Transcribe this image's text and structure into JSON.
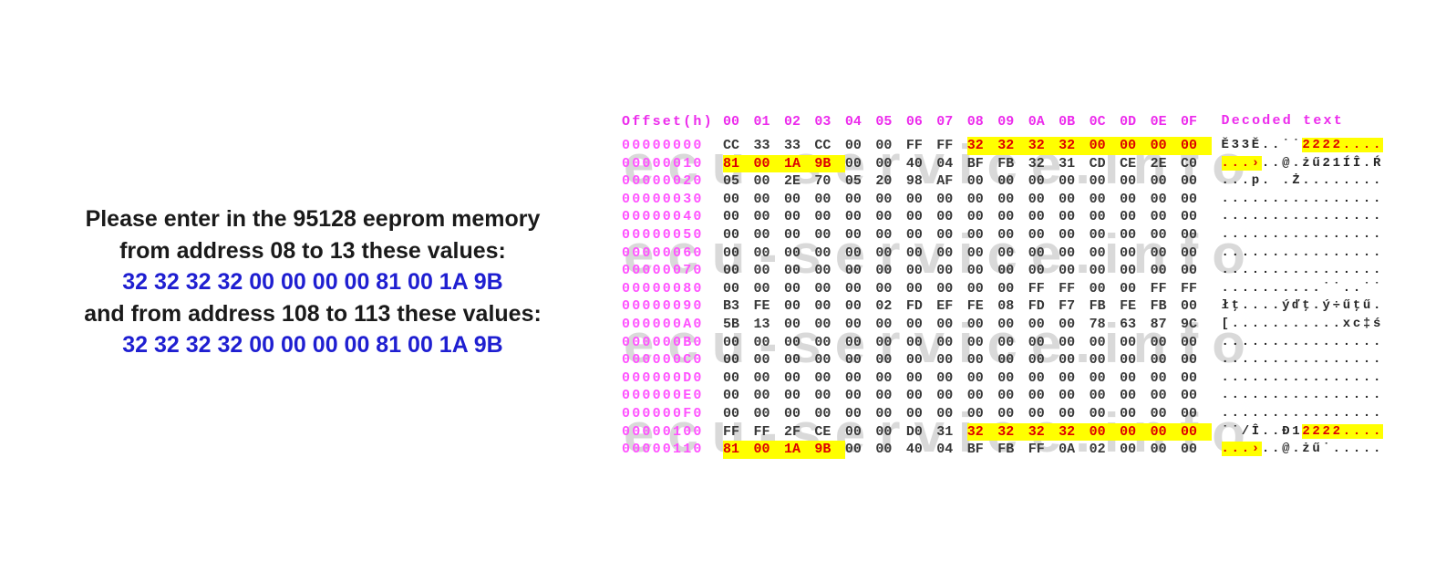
{
  "instructions": {
    "lines": [
      {
        "text": "Please enter in the 95128 eeprom memory",
        "style": "black"
      },
      {
        "text": "from address 08 to 13 these values:",
        "style": "black"
      },
      {
        "text": "32 32 32 32 00 00 00 00 81 00 1A 9B",
        "style": "blue"
      },
      {
        "text": "and from address 108 to 113 these values:",
        "style": "black"
      },
      {
        "text": "32 32 32 32 00 00 00 00 81 00 1A 9B",
        "style": "blue"
      }
    ],
    "text_color": "#1a1a1a",
    "value_color": "#1f1fd1"
  },
  "hex_editor": {
    "offset_header": "Offset(h)",
    "decoded_header": "Decoded text",
    "column_labels": [
      "00",
      "01",
      "02",
      "03",
      "04",
      "05",
      "06",
      "07",
      "08",
      "09",
      "0A",
      "0B",
      "0C",
      "0D",
      "0E",
      "0F"
    ],
    "watermark_text": "ecu-service.info",
    "colors": {
      "header_magenta": "#ec2bec",
      "address_pink": "#ff52ff",
      "hex_text": "#383838",
      "highlight_bg": "#ffff00",
      "highlight_text": "#dd0000",
      "watermark_gray": "#d9d9d9"
    },
    "rows": [
      {
        "address": "00000000",
        "bytes": [
          "CC",
          "33",
          "33",
          "CC",
          "00",
          "00",
          "FF",
          "FF",
          "32",
          "32",
          "32",
          "32",
          "00",
          "00",
          "00",
          "00"
        ],
        "hl": [
          8,
          16
        ],
        "decoded": [
          {
            "t": "Ě33Ě..˙˙",
            "h": false
          },
          {
            "t": "2222....",
            "h": true
          }
        ]
      },
      {
        "address": "00000010",
        "bytes": [
          "81",
          "00",
          "1A",
          "9B",
          "00",
          "00",
          "40",
          "04",
          "BF",
          "FB",
          "32",
          "31",
          "CD",
          "CE",
          "2E",
          "C0"
        ],
        "hl": [
          0,
          4
        ],
        "decoded": [
          {
            "t": "...›",
            "h": true
          },
          {
            "t": "..@.żű21ÍÎ.Ŕ",
            "h": false
          }
        ]
      },
      {
        "address": "00000020",
        "bytes": [
          "05",
          "00",
          "2E",
          "70",
          "05",
          "20",
          "98",
          "AF",
          "00",
          "00",
          "00",
          "00",
          "00",
          "00",
          "00",
          "00"
        ],
        "hl": null,
        "decoded": [
          {
            "t": "...p. .Ż........",
            "h": false
          }
        ]
      },
      {
        "address": "00000030",
        "bytes": [
          "00",
          "00",
          "00",
          "00",
          "00",
          "00",
          "00",
          "00",
          "00",
          "00",
          "00",
          "00",
          "00",
          "00",
          "00",
          "00"
        ],
        "hl": null,
        "decoded": [
          {
            "t": "................",
            "h": false
          }
        ]
      },
      {
        "address": "00000040",
        "bytes": [
          "00",
          "00",
          "00",
          "00",
          "00",
          "00",
          "00",
          "00",
          "00",
          "00",
          "00",
          "00",
          "00",
          "00",
          "00",
          "00"
        ],
        "hl": null,
        "decoded": [
          {
            "t": "................",
            "h": false
          }
        ]
      },
      {
        "address": "00000050",
        "bytes": [
          "00",
          "00",
          "00",
          "00",
          "00",
          "00",
          "00",
          "00",
          "00",
          "00",
          "00",
          "00",
          "00",
          "00",
          "00",
          "00"
        ],
        "hl": null,
        "decoded": [
          {
            "t": "................",
            "h": false
          }
        ]
      },
      {
        "address": "00000060",
        "bytes": [
          "00",
          "00",
          "00",
          "00",
          "00",
          "00",
          "00",
          "00",
          "00",
          "00",
          "00",
          "00",
          "00",
          "00",
          "00",
          "00"
        ],
        "hl": null,
        "decoded": [
          {
            "t": "................",
            "h": false
          }
        ]
      },
      {
        "address": "00000070",
        "bytes": [
          "00",
          "00",
          "00",
          "00",
          "00",
          "00",
          "00",
          "00",
          "00",
          "00",
          "00",
          "00",
          "00",
          "00",
          "00",
          "00"
        ],
        "hl": null,
        "decoded": [
          {
            "t": "................",
            "h": false
          }
        ]
      },
      {
        "address": "00000080",
        "bytes": [
          "00",
          "00",
          "00",
          "00",
          "00",
          "00",
          "00",
          "00",
          "00",
          "00",
          "FF",
          "FF",
          "00",
          "00",
          "FF",
          "FF"
        ],
        "hl": null,
        "decoded": [
          {
            "t": "..........˙˙..˙˙",
            "h": false
          }
        ]
      },
      {
        "address": "00000090",
        "bytes": [
          "B3",
          "FE",
          "00",
          "00",
          "00",
          "02",
          "FD",
          "EF",
          "FE",
          "08",
          "FD",
          "F7",
          "FB",
          "FE",
          "FB",
          "00"
        ],
        "hl": null,
        "decoded": [
          {
            "t": "łţ....ýďţ.ý÷űţű.",
            "h": false
          }
        ]
      },
      {
        "address": "000000A0",
        "bytes": [
          "5B",
          "13",
          "00",
          "00",
          "00",
          "00",
          "00",
          "00",
          "00",
          "00",
          "00",
          "00",
          "78",
          "63",
          "87",
          "9C"
        ],
        "hl": null,
        "decoded": [
          {
            "t": "[...........xc‡ś",
            "h": false
          }
        ]
      },
      {
        "address": "000000B0",
        "bytes": [
          "00",
          "00",
          "00",
          "00",
          "00",
          "00",
          "00",
          "00",
          "00",
          "00",
          "00",
          "00",
          "00",
          "00",
          "00",
          "00"
        ],
        "hl": null,
        "decoded": [
          {
            "t": "................",
            "h": false
          }
        ]
      },
      {
        "address": "000000C0",
        "bytes": [
          "00",
          "00",
          "00",
          "00",
          "00",
          "00",
          "00",
          "00",
          "00",
          "00",
          "00",
          "00",
          "00",
          "00",
          "00",
          "00"
        ],
        "hl": null,
        "decoded": [
          {
            "t": "................",
            "h": false
          }
        ]
      },
      {
        "address": "000000D0",
        "bytes": [
          "00",
          "00",
          "00",
          "00",
          "00",
          "00",
          "00",
          "00",
          "00",
          "00",
          "00",
          "00",
          "00",
          "00",
          "00",
          "00"
        ],
        "hl": null,
        "decoded": [
          {
            "t": "................",
            "h": false
          }
        ]
      },
      {
        "address": "000000E0",
        "bytes": [
          "00",
          "00",
          "00",
          "00",
          "00",
          "00",
          "00",
          "00",
          "00",
          "00",
          "00",
          "00",
          "00",
          "00",
          "00",
          "00"
        ],
        "hl": null,
        "decoded": [
          {
            "t": "................",
            "h": false
          }
        ]
      },
      {
        "address": "000000F0",
        "bytes": [
          "00",
          "00",
          "00",
          "00",
          "00",
          "00",
          "00",
          "00",
          "00",
          "00",
          "00",
          "00",
          "00",
          "00",
          "00",
          "00"
        ],
        "hl": null,
        "decoded": [
          {
            "t": "................",
            "h": false
          }
        ]
      },
      {
        "address": "00000100",
        "bytes": [
          "FF",
          "FF",
          "2F",
          "CE",
          "00",
          "00",
          "D0",
          "31",
          "32",
          "32",
          "32",
          "32",
          "00",
          "00",
          "00",
          "00"
        ],
        "hl": [
          8,
          16
        ],
        "decoded": [
          {
            "t": "˙˙/Î..Đ1",
            "h": false
          },
          {
            "t": "2222....",
            "h": true
          }
        ]
      },
      {
        "address": "00000110",
        "bytes": [
          "81",
          "00",
          "1A",
          "9B",
          "00",
          "00",
          "40",
          "04",
          "BF",
          "FB",
          "FF",
          "0A",
          "02",
          "00",
          "00",
          "00"
        ],
        "hl": [
          0,
          4
        ],
        "decoded": [
          {
            "t": "...›",
            "h": true
          },
          {
            "t": "..@.żű˙.....",
            "h": false
          }
        ]
      }
    ]
  }
}
